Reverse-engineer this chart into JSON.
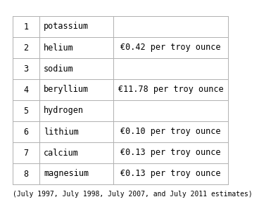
{
  "rows": [
    {
      "rank": "1",
      "name": "potassium",
      "price": ""
    },
    {
      "rank": "2",
      "name": "helium",
      "price": "€0.42 per troy ounce"
    },
    {
      "rank": "3",
      "name": "sodium",
      "price": ""
    },
    {
      "rank": "4",
      "name": "beryllium",
      "price": "€11.78 per troy ounce"
    },
    {
      "rank": "5",
      "name": "hydrogen",
      "price": ""
    },
    {
      "rank": "6",
      "name": "lithium",
      "price": "€0.10 per troy ounce"
    },
    {
      "rank": "7",
      "name": "calcium",
      "price": "€0.13 per troy ounce"
    },
    {
      "rank": "8",
      "name": "magnesium",
      "price": "€0.13 per troy ounce"
    }
  ],
  "footnote": "(July 1997, July 1998, July 2007, and July 2011 estimates)",
  "background_color": "#ffffff",
  "grid_color": "#b0b0b0",
  "text_color": "#000000",
  "font_size": 8.5,
  "footnote_font_size": 7.0
}
